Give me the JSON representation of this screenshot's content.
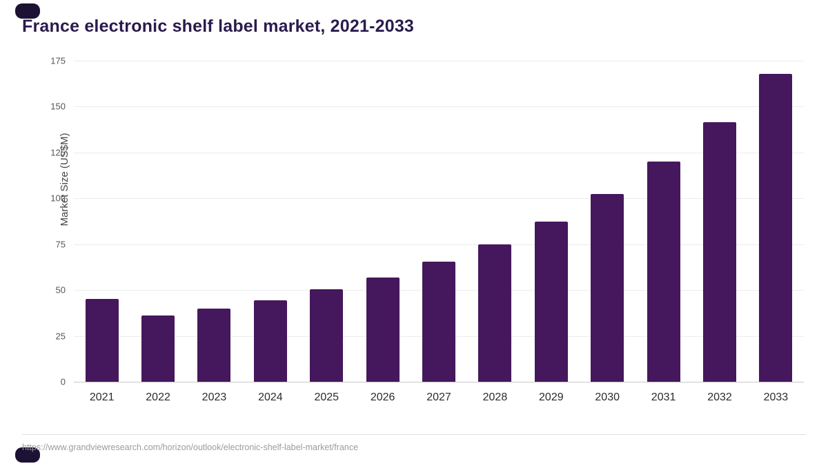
{
  "chart_data": {
    "type": "bar",
    "title": "France electronic shelf label market, 2021-2033",
    "categories": [
      "2021",
      "2022",
      "2023",
      "2024",
      "2025",
      "2026",
      "2027",
      "2028",
      "2029",
      "2030",
      "2031",
      "2032",
      "2033"
    ],
    "values": [
      45,
      36,
      40,
      44.5,
      50.5,
      57,
      65.5,
      75,
      87.5,
      102.5,
      120,
      141.5,
      168
    ],
    "xlabel": "",
    "ylabel": "Market Size (US$M)",
    "ylim": [
      0,
      175
    ],
    "yticks": [
      0,
      25,
      50,
      75,
      100,
      125,
      150,
      175
    ],
    "grid": "horizontal",
    "legend": "none",
    "bar_color": "#45175c"
  },
  "footer": {
    "source": "https://www.grandviewresearch.com/horizon/outlook/electronic-shelf-label-market/france"
  },
  "colors": {
    "title": "#2a1b4d",
    "bar": "#45175c",
    "corner": "#1c1233"
  }
}
